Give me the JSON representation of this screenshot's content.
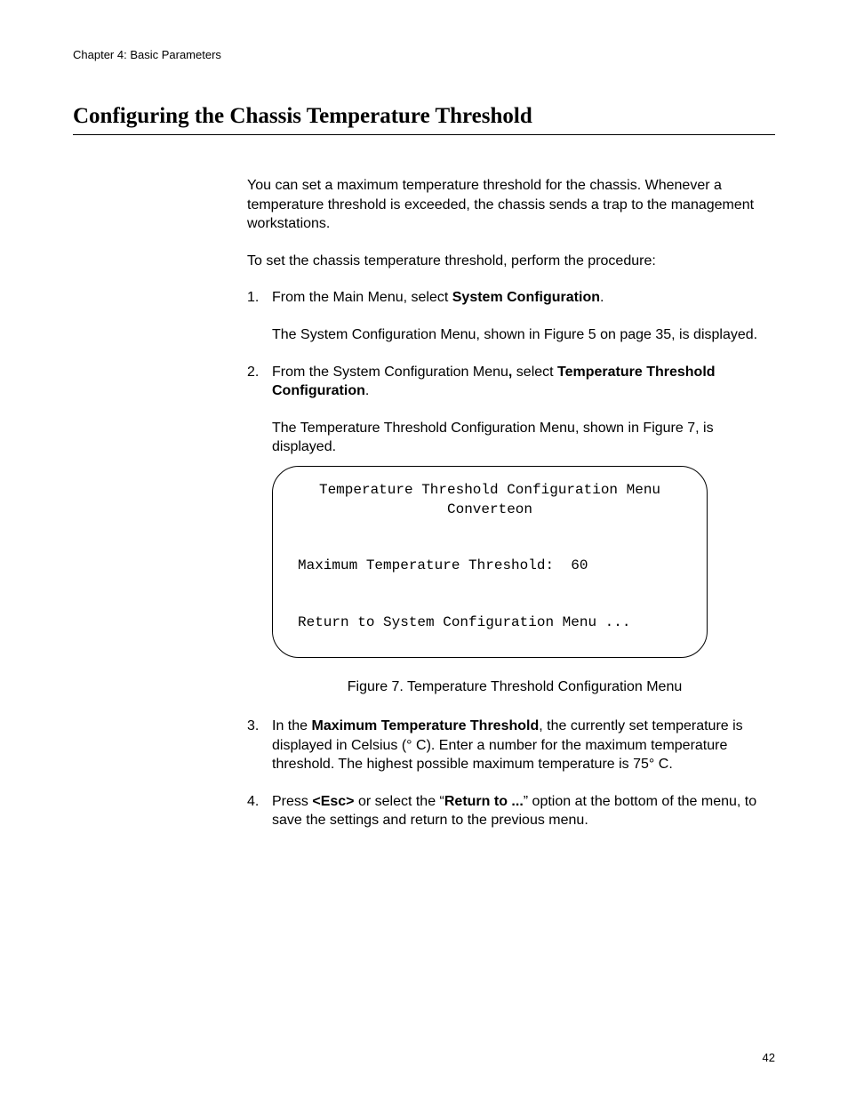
{
  "header": {
    "chapter": "Chapter 4: Basic Parameters"
  },
  "section": {
    "title": "Configuring the Chassis Temperature Threshold"
  },
  "intro": {
    "p1": "You can set a maximum temperature threshold for the chassis. Whenever a temperature threshold is exceeded, the chassis sends a trap to the management workstations.",
    "p2": "To set the chassis temperature threshold, perform the procedure:"
  },
  "steps": {
    "s1": {
      "num": "1.",
      "pre": "From the Main Menu, select ",
      "bold": "System Configuration",
      "post": ".",
      "sub": "The System Configuration Menu, shown in Figure 5 on page 35, is displayed."
    },
    "s2": {
      "num": "2.",
      "pre": "From the System Configuration Menu",
      "bold1": ",",
      "mid": " select ",
      "bold2": "Temperature Threshold Configuration",
      "post": ".",
      "sub": "The Temperature Threshold Configuration Menu, shown in Figure 7, is displayed."
    },
    "s3": {
      "num": "3.",
      "pre": "In the ",
      "bold": "Maximum Temperature Threshold",
      "post": ", the currently set temperature is displayed in Celsius (° C). Enter a number for the maximum temperature threshold. The highest possible maximum temperature is 75° C."
    },
    "s4": {
      "num": "4.",
      "pre": "Press ",
      "bold1": "<Esc>",
      "mid1": " or select the “",
      "bold2": "Return to ...",
      "post": "” option at the bottom of the menu, to save the settings and return to the previous menu."
    }
  },
  "menu": {
    "title": "Temperature Threshold Configuration Menu",
    "subtitle": "Converteon",
    "line1": "Maximum Temperature Threshold:  60",
    "return": "Return to System Configuration Menu ..."
  },
  "figure": {
    "caption": "Figure 7. Temperature Threshold Configuration Menu"
  },
  "footer": {
    "page": "42"
  }
}
